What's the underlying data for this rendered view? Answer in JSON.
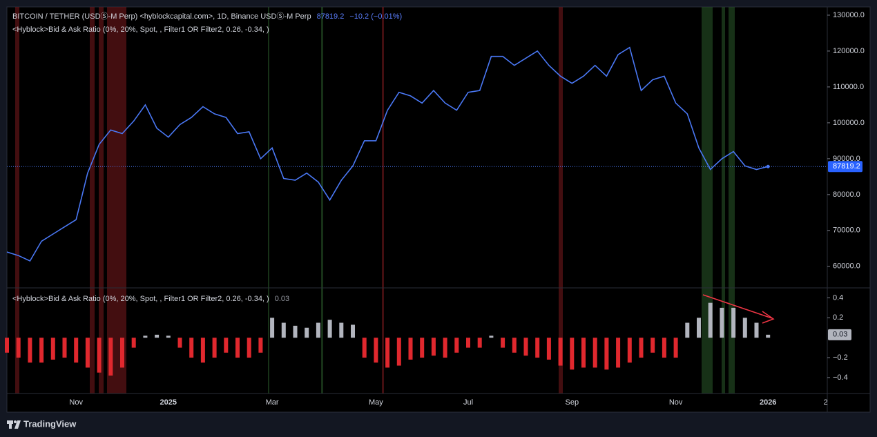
{
  "chart_data": [
    {
      "type": "line",
      "title": "BITCOIN / TETHER (USDⓈ-M Perp) <hyblockcapital.com>, 1D, Binance USDⓈ-M Perp",
      "last_value": 87819.2,
      "change_label": "−10.2 (−0.01%)",
      "indicator_legend": "<Hyblock>Bid & Ask Ratio (0%, 20%, Spot, , Filter1 OR Filter2, 0.26, -0.34, )",
      "color": "#4a78f5",
      "categories": [
        null,
        null,
        null,
        null,
        null,
        null,
        "Nov",
        null,
        null,
        null,
        null,
        null,
        null,
        null,
        "2025",
        null,
        null,
        null,
        null,
        null,
        null,
        null,
        null,
        "Mar",
        null,
        null,
        null,
        null,
        null,
        null,
        null,
        null,
        "May",
        null,
        null,
        null,
        null,
        null,
        null,
        null,
        "Jul",
        null,
        null,
        null,
        null,
        null,
        null,
        null,
        null,
        "Sep",
        null,
        null,
        null,
        null,
        null,
        null,
        null,
        null,
        "Nov",
        null,
        null,
        null,
        null,
        null,
        null,
        null,
        "2026",
        null,
        null,
        null,
        null,
        "2"
      ],
      "values": [
        64000,
        63000,
        61500,
        67000,
        69000,
        71000,
        73000,
        86000,
        94000,
        98000,
        97000,
        100500,
        105000,
        98500,
        96000,
        99500,
        101500,
        104500,
        102500,
        101500,
        97000,
        97500,
        90000,
        93000,
        84500,
        84000,
        86000,
        83500,
        78500,
        84000,
        88000,
        95000,
        95000,
        103500,
        108500,
        107500,
        105500,
        109000,
        105500,
        103500,
        108500,
        109000,
        118500,
        118500,
        116000,
        118000,
        120000,
        116000,
        113000,
        111000,
        113000,
        116000,
        113000,
        119000,
        121000,
        109000,
        112000,
        113000,
        105500,
        102500,
        93000,
        87000,
        90000,
        92000,
        88000,
        87000,
        87819.2,
        null,
        null,
        null,
        null,
        null
      ],
      "ylim": [
        54000,
        132300
      ],
      "yticks": [
        {
          "value": 130000,
          "label": "130000.0"
        },
        {
          "value": 120000,
          "label": "120000.0"
        },
        {
          "value": 110000,
          "label": "110000.0"
        },
        {
          "value": 100000,
          "label": "100000.0"
        },
        {
          "value": 90000,
          "label": "90000.0"
        },
        {
          "value": 80000,
          "label": "80000.0"
        },
        {
          "value": 70000,
          "label": "70000.0"
        },
        {
          "value": 60000,
          "label": "60000.0"
        }
      ]
    },
    {
      "type": "bar",
      "title": "<Hyblock>Bid & Ask Ratio (0%, 20%, Spot, , Filter1 OR Filter2, 0.26, -0.34, )",
      "positive_color": "#b2b5be",
      "negative_color": "#e0282e",
      "values": [
        -0.15,
        -0.2,
        -0.25,
        -0.25,
        -0.22,
        -0.2,
        -0.25,
        -0.3,
        -0.35,
        -0.38,
        -0.3,
        -0.1,
        0.02,
        0.03,
        0.02,
        -0.1,
        -0.2,
        -0.25,
        -0.2,
        -0.15,
        -0.2,
        -0.2,
        -0.15,
        0.2,
        0.15,
        0.12,
        0.1,
        0.15,
        0.18,
        0.15,
        0.13,
        -0.2,
        -0.25,
        -0.3,
        -0.28,
        -0.22,
        -0.2,
        -0.18,
        -0.2,
        -0.15,
        -0.1,
        -0.1,
        0.02,
        -0.1,
        -0.15,
        -0.18,
        -0.2,
        -0.22,
        -0.28,
        -0.32,
        -0.3,
        -0.3,
        -0.32,
        -0.3,
        -0.25,
        -0.2,
        -0.15,
        -0.2,
        -0.2,
        0.15,
        0.2,
        0.35,
        0.3,
        0.3,
        0.2,
        0.15,
        0.03,
        null,
        null,
        null,
        null,
        null
      ],
      "ylim": [
        -0.56,
        0.5
      ],
      "yticks": [
        0.4,
        0.2,
        {
          "value": -0.2,
          "label": "−0.2"
        },
        {
          "value": -0.4,
          "label": "−0.4"
        }
      ]
    }
  ],
  "footer": {
    "brand": "TradingView"
  }
}
